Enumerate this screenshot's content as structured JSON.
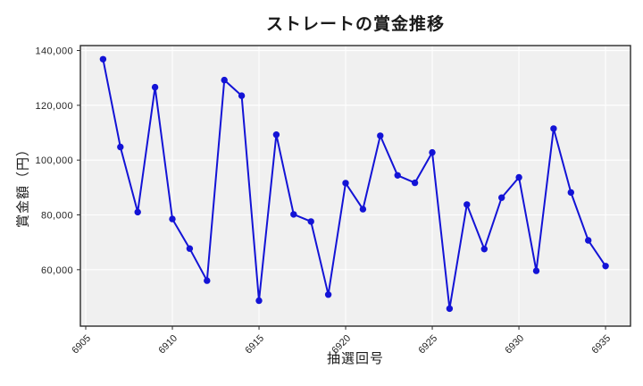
{
  "figure": {
    "title": "ストレートの賞金推移",
    "xlabel": "抽選回号",
    "ylabel": "賞金額（円）"
  },
  "chart_data": {
    "type": "line",
    "title": "ストレートの賞金推移",
    "xlabel": "抽選回号",
    "ylabel": "賞金額（円）",
    "x": [
      6906,
      6907,
      6908,
      6909,
      6910,
      6911,
      6912,
      6913,
      6914,
      6915,
      6916,
      6917,
      6918,
      6919,
      6920,
      6921,
      6922,
      6923,
      6924,
      6925,
      6926,
      6927,
      6928,
      6929,
      6930,
      6931,
      6932,
      6933,
      6934,
      6935
    ],
    "values": [
      136800,
      104800,
      81000,
      126600,
      78500,
      67700,
      56000,
      129200,
      123500,
      48700,
      109300,
      80200,
      77600,
      50900,
      91600,
      82100,
      108900,
      94400,
      91700,
      102800,
      45800,
      83800,
      67500,
      86300,
      93700,
      59600,
      111500,
      88200,
      70700,
      61300
    ],
    "xticks": [
      6905,
      6910,
      6915,
      6920,
      6925,
      6930,
      6935
    ],
    "yticks": [
      60000,
      80000,
      100000,
      120000,
      140000
    ],
    "xlim": [
      6904.69,
      6936.44
    ],
    "ylim": [
      39400,
      141800
    ],
    "grid": true,
    "legend": "none",
    "line_color": "#1313d6",
    "marker_color": "#1313d6",
    "plot_bg": "#f0f0f0",
    "grid_color": "#ffffff",
    "spine_color": "#2b2b2b",
    "tick_label_color": "#262626"
  }
}
